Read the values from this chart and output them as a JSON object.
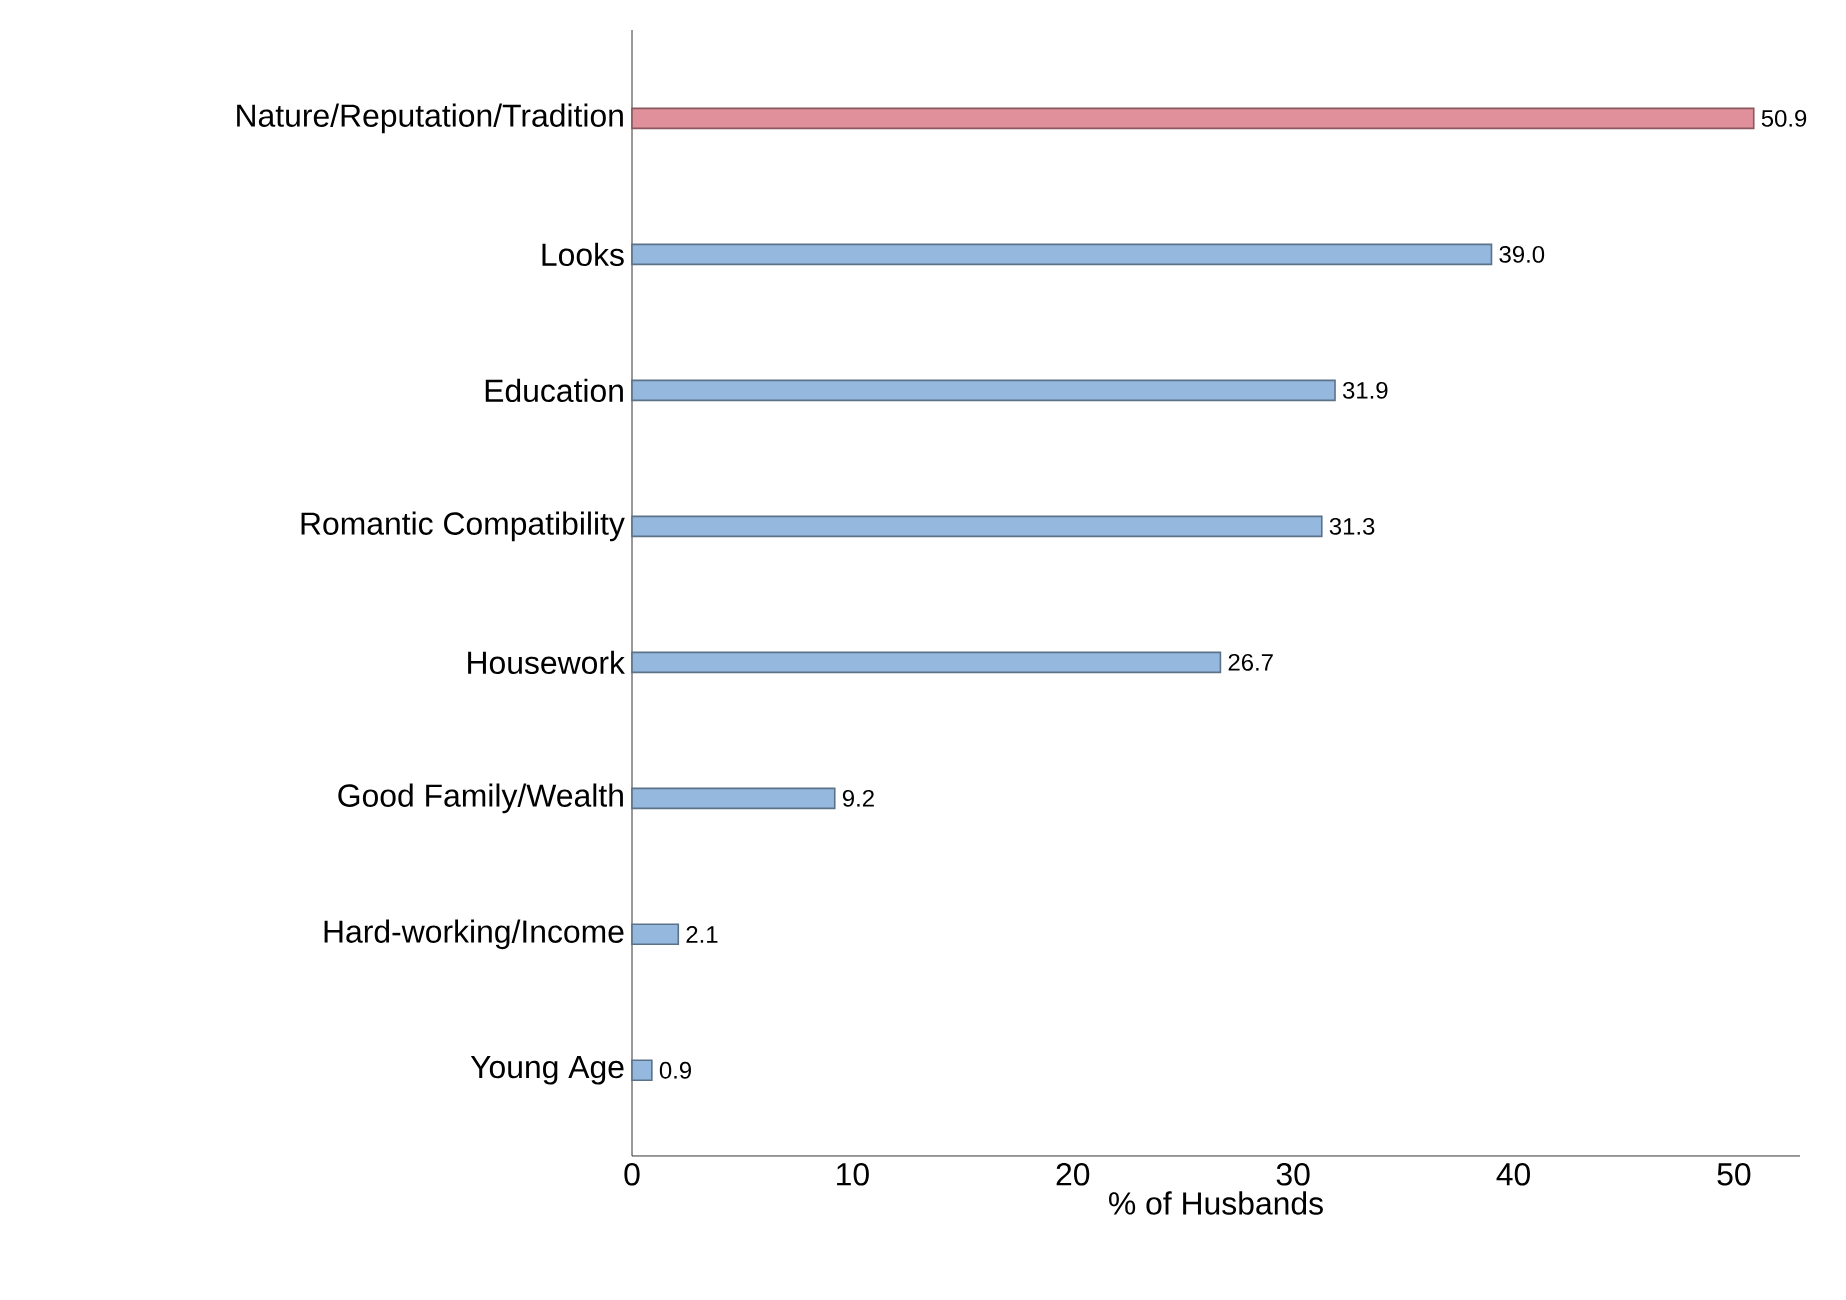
{
  "chart_data": {
    "type": "bar",
    "orientation": "horizontal",
    "xlabel": "% of Husbands",
    "categories": [
      "Nature/Reputation/Tradition",
      "Looks",
      "Education",
      "Romantic Compatibility",
      "Housework",
      "Good Family/Wealth",
      "Hard-working/Income",
      "Young Age"
    ],
    "values": [
      50.9,
      39.0,
      31.9,
      31.3,
      26.7,
      9.2,
      2.1,
      0.9
    ],
    "colors": [
      "#e0909a",
      "#95b8de",
      "#95b8de",
      "#95b8de",
      "#95b8de",
      "#95b8de",
      "#95b8de",
      "#95b8de"
    ],
    "value_labels": [
      "50.9",
      "39.0",
      "31.9",
      "31.3",
      "26.7",
      "9.2",
      "2.1",
      "0.9"
    ],
    "xlim": [
      0,
      53
    ],
    "xticks": [
      0,
      10,
      20,
      30,
      40,
      50
    ]
  }
}
